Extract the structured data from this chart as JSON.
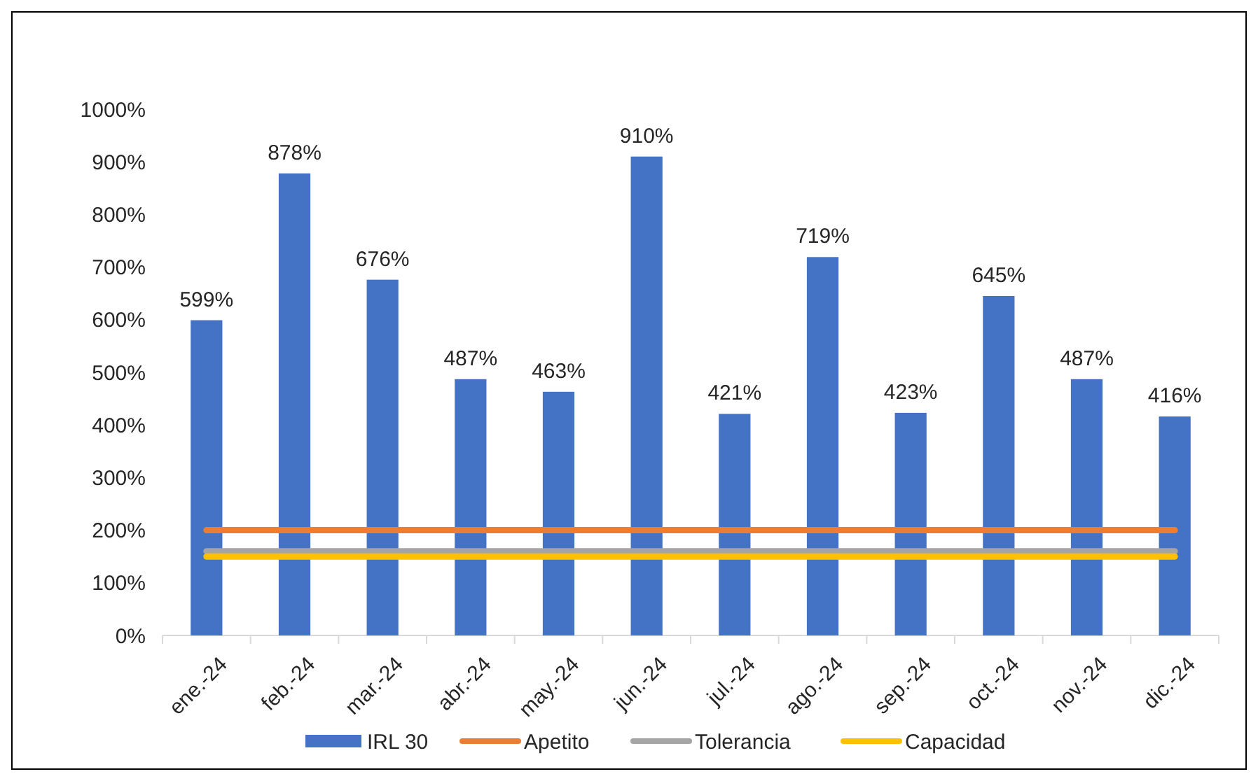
{
  "chart_data": {
    "type": "bar",
    "categories": [
      "ene.-24",
      "feb.-24",
      "mar.-24",
      "abr.-24",
      "may.-24",
      "jun.-24",
      "jul.-24",
      "ago.-24",
      "sep.-24",
      "oct.-24",
      "nov.-24",
      "dic.-24"
    ],
    "series": [
      {
        "name": "IRL 30",
        "color": "#4472c4",
        "values": [
          599,
          878,
          676,
          487,
          463,
          910,
          421,
          719,
          423,
          645,
          487,
          416
        ],
        "value_labels": [
          "599%",
          "878%",
          "676%",
          "487%",
          "463%",
          "910%",
          "421%",
          "719%",
          "423%",
          "645%",
          "487%",
          "416%"
        ]
      },
      {
        "name": "Apetito",
        "type": "line",
        "color": "#ed7d31",
        "values": [
          200,
          200,
          200,
          200,
          200,
          200,
          200,
          200,
          200,
          200,
          200,
          200
        ]
      },
      {
        "name": "Tolerancia",
        "type": "line",
        "color": "#a5a5a5",
        "values": [
          160,
          160,
          160,
          160,
          160,
          160,
          160,
          160,
          160,
          160,
          160,
          160
        ]
      },
      {
        "name": "Capacidad",
        "type": "line",
        "color": "#ffc000",
        "values": [
          150,
          150,
          150,
          150,
          150,
          150,
          150,
          150,
          150,
          150,
          150,
          150
        ]
      }
    ],
    "ylim": [
      0,
      1000
    ],
    "yticks": [
      {
        "value": 0,
        "label": "0%"
      },
      {
        "value": 100,
        "label": "100%"
      },
      {
        "value": 200,
        "label": "200%"
      },
      {
        "value": 300,
        "label": "300%"
      },
      {
        "value": 400,
        "label": "400%"
      },
      {
        "value": 500,
        "label": "500%"
      },
      {
        "value": 600,
        "label": "600%"
      },
      {
        "value": 700,
        "label": "700%"
      },
      {
        "value": 800,
        "label": "800%"
      },
      {
        "value": 900,
        "label": "900%"
      },
      {
        "value": 1000,
        "label": "1000%"
      }
    ],
    "grid": false,
    "legend": "bottom",
    "marker": "none",
    "line_style": "solid"
  }
}
